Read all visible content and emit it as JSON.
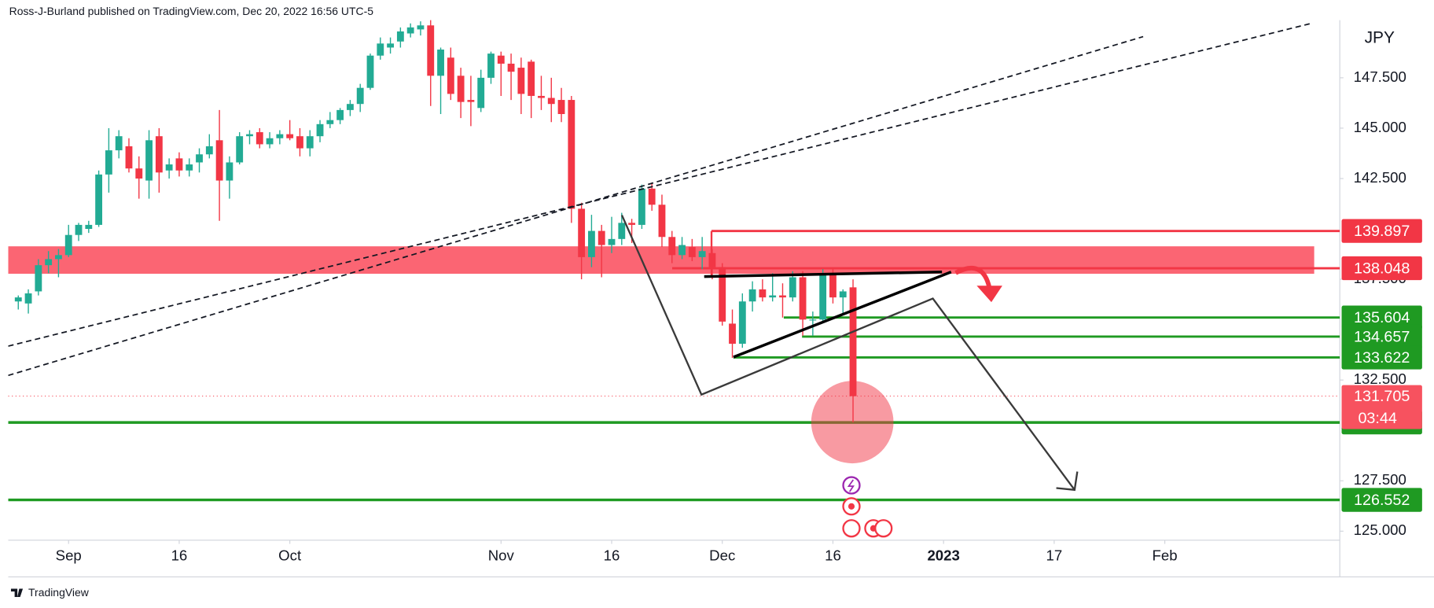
{
  "chart_data": {
    "type": "candlestick",
    "header": "Ross-J-Burland published on TradingView.com, Dec 20, 2022 16:56 UTC-5",
    "currency": "JPY",
    "footer": "TradingView",
    "up_color": "#22ab94",
    "down_color": "#f23645",
    "x": [
      -5,
      -4,
      -3,
      -2,
      -1,
      0,
      1,
      2,
      3,
      4,
      5,
      6,
      7,
      8,
      9,
      10,
      11,
      12,
      13,
      14,
      15,
      16,
      17,
      18,
      19,
      20,
      21,
      22,
      23,
      24,
      25,
      26,
      27,
      28,
      29,
      30,
      31,
      32,
      33,
      34,
      35,
      36,
      37,
      38,
      39,
      40,
      41,
      42,
      43,
      44,
      45,
      46,
      47,
      48,
      49,
      50,
      51,
      52,
      53,
      54,
      55,
      56,
      57,
      58,
      59,
      60,
      61,
      62,
      63,
      64,
      65,
      66,
      67,
      68,
      69,
      70,
      71,
      72,
      73,
      74,
      75,
      76,
      77,
      78
    ],
    "open": [
      136.4,
      136.3,
      136.9,
      138.2,
      138.5,
      138.7,
      139.7,
      140.0,
      140.2,
      142.7,
      143.9,
      144.1,
      143.0,
      142.4,
      144.6,
      142.9,
      143.5,
      142.9,
      143.3,
      143.7,
      144.4,
      142.4,
      143.3,
      144.6,
      144.8,
      144.2,
      144.5,
      144.7,
      144.6,
      144.0,
      144.6,
      145.2,
      145.4,
      145.9,
      146.2,
      147.0,
      148.6,
      149.0,
      149.3,
      149.7,
      149.9,
      150.1,
      147.6,
      148.5,
      147.6,
      146.4,
      146.0,
      147.5,
      148.6,
      148.2,
      148.0,
      148.3,
      146.6,
      146.5,
      146.4,
      146.4,
      141.0,
      138.6,
      139.9,
      139.2,
      139.5,
      140.3,
      140.2,
      142.0,
      141.2,
      139.6,
      138.7,
      139.1,
      138.6,
      138.8,
      138.1,
      135.3,
      134.3,
      136.4,
      137.0,
      136.6,
      136.7,
      136.6,
      137.6,
      135.5,
      135.5,
      137.8,
      136.6,
      137.1
    ],
    "high": [
      136.7,
      137.0,
      138.5,
      138.9,
      139.0,
      140.2,
      140.3,
      140.4,
      142.9,
      145.0,
      144.9,
      144.5,
      143.6,
      144.9,
      145.0,
      143.5,
      143.8,
      143.5,
      144.0,
      144.7,
      145.9,
      143.6,
      144.8,
      144.9,
      145.0,
      144.8,
      144.9,
      145.4,
      145.0,
      144.9,
      145.4,
      145.8,
      146.0,
      146.4,
      147.2,
      148.7,
      149.5,
      149.5,
      150.0,
      150.2,
      150.3,
      150.4,
      149.0,
      149.0,
      148.0,
      147.6,
      147.9,
      148.8,
      148.8,
      148.7,
      148.5,
      148.4,
      147.6,
      147.5,
      147.0,
      146.6,
      141.3,
      140.7,
      140.2,
      140.6,
      140.8,
      140.5,
      142.2,
      142.3,
      141.7,
      139.9,
      139.6,
      139.5,
      139.6,
      139.0,
      138.3,
      136.0,
      136.8,
      137.4,
      137.5,
      137.8,
      137.3,
      137.9,
      137.9,
      135.9,
      138.0,
      138.0,
      137.0,
      137.5
    ],
    "low": [
      136.0,
      135.8,
      136.7,
      137.8,
      137.6,
      138.6,
      139.4,
      139.8,
      140.1,
      141.8,
      143.5,
      142.8,
      141.5,
      141.5,
      141.8,
      142.5,
      142.6,
      142.6,
      142.8,
      143.5,
      140.4,
      141.5,
      143.2,
      144.2,
      144.0,
      144.0,
      144.2,
      144.4,
      143.6,
      143.6,
      144.3,
      145.0,
      145.2,
      145.6,
      145.8,
      146.9,
      148.4,
      148.7,
      149.0,
      149.5,
      149.6,
      146.1,
      145.7,
      146.4,
      145.5,
      145.1,
      145.8,
      147.2,
      146.6,
      146.4,
      145.7,
      145.5,
      145.9,
      145.3,
      145.3,
      140.3,
      137.5,
      138.1,
      137.6,
      138.8,
      139.2,
      139.3,
      140.0,
      140.9,
      139.1,
      138.3,
      138.5,
      138.4,
      138.0,
      137.5,
      135.2,
      133.6,
      134.1,
      135.9,
      136.4,
      136.4,
      135.6,
      136.4,
      134.7,
      134.7,
      135.4,
      136.3,
      135.8,
      130.4
    ],
    "close": [
      136.6,
      136.8,
      138.2,
      138.5,
      138.7,
      139.7,
      140.2,
      140.2,
      142.7,
      143.9,
      144.6,
      143.0,
      142.5,
      144.4,
      142.8,
      143.2,
      142.9,
      143.2,
      143.7,
      144.1,
      142.4,
      143.3,
      144.6,
      144.7,
      144.2,
      144.5,
      144.7,
      144.5,
      144.0,
      144.6,
      145.2,
      145.4,
      145.9,
      146.2,
      147.0,
      148.6,
      149.2,
      149.2,
      149.8,
      150.0,
      150.1,
      147.6,
      148.9,
      146.7,
      146.3,
      146.3,
      147.5,
      148.7,
      148.2,
      147.8,
      146.7,
      146.6,
      146.5,
      146.2,
      145.7,
      141.0,
      138.6,
      139.9,
      139.2,
      139.5,
      140.3,
      140.2,
      142.0,
      141.2,
      139.6,
      138.7,
      139.2,
      138.6,
      138.9,
      138.1,
      135.4,
      134.3,
      136.4,
      137.0,
      136.6,
      136.7,
      136.6,
      137.6,
      135.5,
      135.5,
      137.8,
      136.6,
      136.9,
      131.7
    ],
    "xlim": [
      -6,
      126.4
    ],
    "xticks": [
      {
        "value": 0,
        "label": "Sep"
      },
      {
        "value": 11,
        "label": "16"
      },
      {
        "value": 22,
        "label": "Oct"
      },
      {
        "value": 43,
        "label": "Nov"
      },
      {
        "value": 54,
        "label": "16"
      },
      {
        "value": 65,
        "label": "Dec"
      },
      {
        "value": 76,
        "label": "16"
      },
      {
        "value": 87,
        "label": "2023"
      },
      {
        "value": 98,
        "label": "17"
      },
      {
        "value": 109,
        "label": "Feb"
      }
    ],
    "ylim": [
      124.55,
      150.36
    ],
    "yticks": [
      {
        "value": 125,
        "label": "125.000"
      },
      {
        "value": 127.5,
        "label": "127.500"
      },
      {
        "value": 132.5,
        "label": "132.500"
      },
      {
        "value": 137.5,
        "label": "137.500"
      },
      {
        "value": 142.5,
        "label": "142.500"
      },
      {
        "value": 145,
        "label": "145.000"
      },
      {
        "value": 147.5,
        "label": "147.500"
      }
    ],
    "levels": [
      {
        "value": 139.897,
        "color": "#f23645"
      },
      {
        "value": 138.048,
        "color": "#f23645"
      },
      {
        "value": 135.604,
        "color": "#1f9a22"
      },
      {
        "value": 134.657,
        "color": "#1f9a22"
      },
      {
        "value": 133.622,
        "color": "#1f9a22"
      },
      {
        "value": 130.396,
        "color": "#1f9a22"
      },
      {
        "value": 126.552,
        "color": "#1f9a22"
      }
    ],
    "current_price": {
      "value": 131.705,
      "countdown": "03:44",
      "color": "#f7525f"
    }
  }
}
